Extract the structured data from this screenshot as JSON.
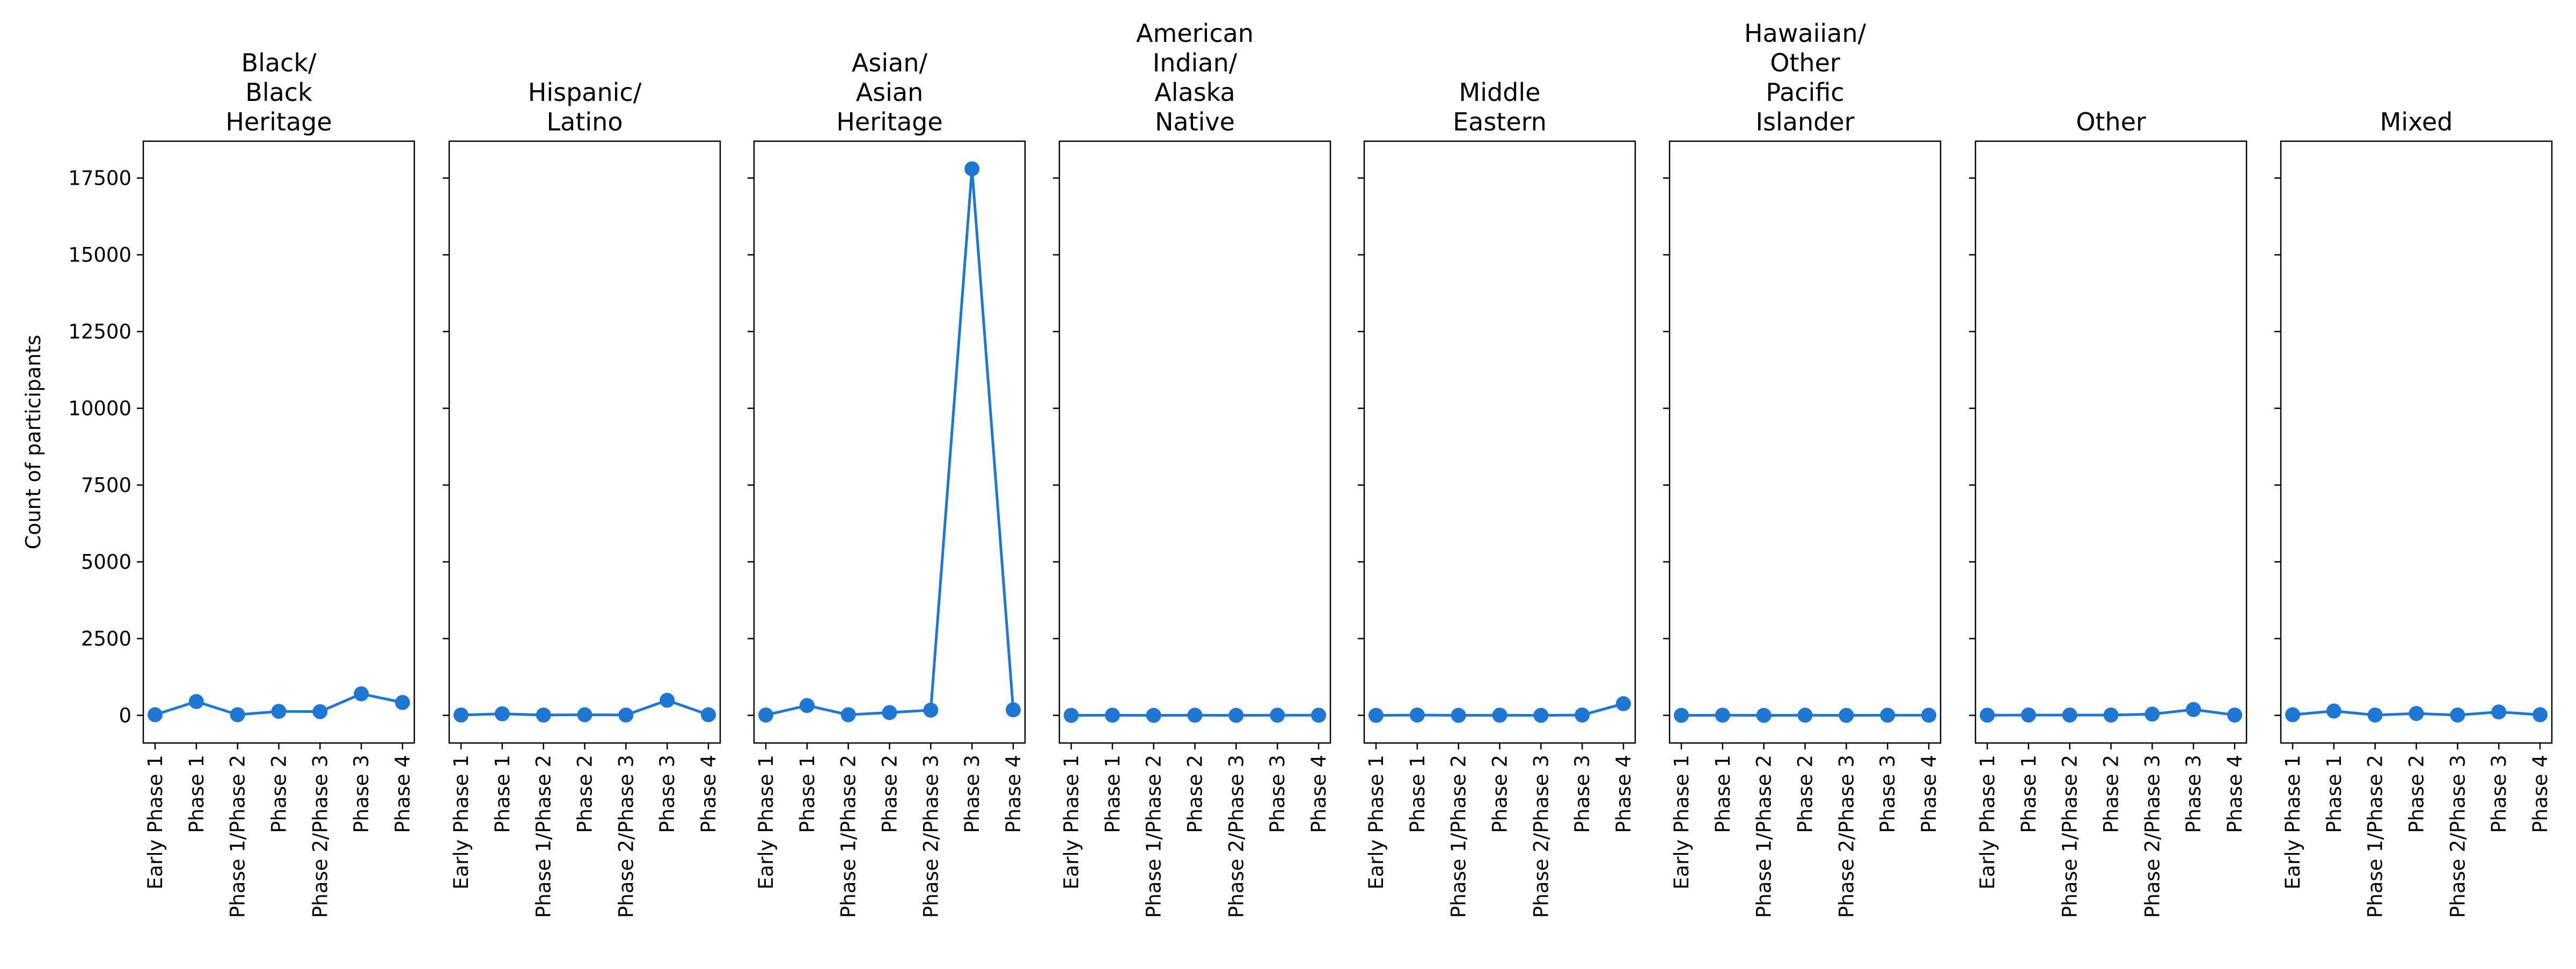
{
  "chart_data": {
    "type": "line",
    "ylabel": "Count of participants",
    "ylim": [
      -900,
      18700
    ],
    "yticks": [
      0,
      2500,
      5000,
      7500,
      10000,
      12500,
      15000,
      17500
    ],
    "categories": [
      "Early Phase 1",
      "Phase 1",
      "Phase 1/Phase 2",
      "Phase 2",
      "Phase 2/Phase 3",
      "Phase 3",
      "Phase 4"
    ],
    "line_color": "#1f77d4",
    "panels": [
      {
        "title": "Black/\nBlack\nHeritage",
        "values": [
          20,
          450,
          20,
          130,
          120,
          700,
          420
        ]
      },
      {
        "title": "Hispanic/\nLatino",
        "values": [
          10,
          50,
          10,
          20,
          10,
          490,
          20
        ]
      },
      {
        "title": "Asian/\nAsian\nHeritage",
        "values": [
          10,
          320,
          20,
          90,
          170,
          17800,
          180
        ]
      },
      {
        "title": "American\nIndian/\nAlaska\nNative",
        "values": [
          0,
          5,
          0,
          5,
          0,
          5,
          5
        ]
      },
      {
        "title": "Middle\nEastern",
        "values": [
          0,
          10,
          0,
          5,
          0,
          10,
          380
        ]
      },
      {
        "title": "Hawaiian/\nOther\nPacific\nIslander",
        "values": [
          0,
          5,
          0,
          5,
          0,
          5,
          5
        ]
      },
      {
        "title": "Other",
        "values": [
          5,
          10,
          10,
          10,
          40,
          190,
          10
        ]
      },
      {
        "title": "Mixed",
        "values": [
          20,
          140,
          10,
          60,
          10,
          110,
          20
        ]
      }
    ]
  }
}
